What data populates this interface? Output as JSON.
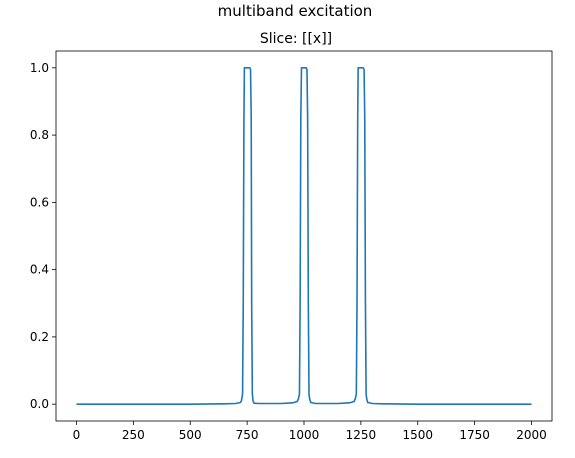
{
  "chart_data": {
    "type": "line",
    "suptitle": "multiband excitation",
    "title": "Slice: [[x]]",
    "xlabel": "",
    "ylabel": "",
    "xlim": [
      -90,
      2090
    ],
    "ylim": [
      -0.05,
      1.05
    ],
    "xticks": [
      0,
      250,
      500,
      750,
      1000,
      1250,
      1500,
      1750,
      2000
    ],
    "yticks": [
      0.0,
      0.2,
      0.4,
      0.6,
      0.8,
      1.0
    ],
    "xtick_labels": [
      "0",
      "250",
      "500",
      "750",
      "1000",
      "1250",
      "1500",
      "1750",
      "2000"
    ],
    "ytick_labels": [
      "0.0",
      "0.2",
      "0.4",
      "0.6",
      "0.8",
      "1.0"
    ],
    "grid": false,
    "legend": "none",
    "series": [
      {
        "color": "#1f77b4",
        "x": [
          0,
          500,
          650,
          700,
          720,
          725,
          730,
          733,
          736,
          738,
          741,
          744,
          748,
          753,
          757,
          762,
          765,
          768,
          770,
          773,
          776,
          780,
          800,
          900,
          950,
          970,
          975,
          980,
          983,
          986,
          989,
          992,
          996,
          1000,
          1006,
          1010,
          1013,
          1016,
          1019,
          1022,
          1025,
          1030,
          1050,
          1150,
          1200,
          1220,
          1225,
          1230,
          1233,
          1236,
          1238,
          1241,
          1245,
          1250,
          1256,
          1260,
          1264,
          1267,
          1270,
          1273,
          1276,
          1280,
          1300,
          1350,
          1500,
          2000
        ],
        "y": [
          0.0,
          0.0,
          0.001,
          0.002,
          0.005,
          0.01,
          0.03,
          0.3,
          0.85,
          1.0,
          1.0,
          1.0,
          1.0,
          1.0,
          1.0,
          1.0,
          0.995,
          0.85,
          0.3,
          0.03,
          0.01,
          0.003,
          0.002,
          0.002,
          0.004,
          0.008,
          0.015,
          0.03,
          0.3,
          0.85,
          1.0,
          1.0,
          1.0,
          1.0,
          1.0,
          1.0,
          0.995,
          0.85,
          0.3,
          0.03,
          0.015,
          0.005,
          0.002,
          0.002,
          0.004,
          0.008,
          0.015,
          0.03,
          0.3,
          0.85,
          1.0,
          1.0,
          1.0,
          1.0,
          1.0,
          1.0,
          0.995,
          0.85,
          0.3,
          0.03,
          0.015,
          0.005,
          0.002,
          0.001,
          0.0,
          0.0
        ]
      }
    ]
  }
}
